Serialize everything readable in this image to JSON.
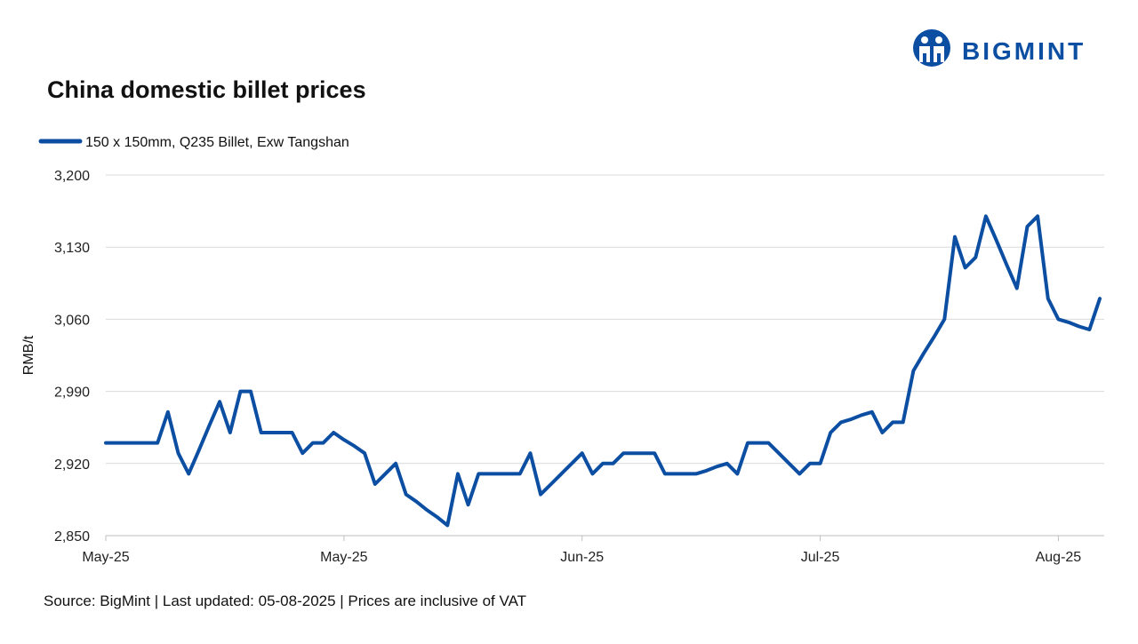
{
  "brand": "BIGMINT",
  "chart_data": {
    "type": "line",
    "title": "China domestic billet prices",
    "y_label": "RMB/t",
    "footer": "Source: BigMint | Last updated: 05-08-2025 | Prices are inclusive of VAT",
    "categories": [
      "May-25",
      null,
      null,
      null,
      null,
      null,
      null,
      null,
      null,
      null,
      null,
      null,
      null,
      null,
      null,
      null,
      null,
      null,
      null,
      null,
      null,
      null,
      null,
      "May-25",
      null,
      null,
      null,
      null,
      null,
      null,
      null,
      null,
      null,
      null,
      null,
      null,
      null,
      null,
      null,
      null,
      null,
      null,
      null,
      null,
      null,
      null,
      "Jun-25",
      null,
      null,
      null,
      null,
      null,
      null,
      null,
      null,
      null,
      null,
      null,
      null,
      null,
      null,
      null,
      null,
      null,
      null,
      null,
      null,
      null,
      null,
      "Jul-25",
      null,
      null,
      null,
      null,
      null,
      null,
      null,
      null,
      null,
      null,
      null,
      null,
      null,
      null,
      null,
      null,
      null,
      null,
      null,
      null,
      null,
      null,
      "Aug-25",
      null,
      null,
      null,
      null
    ],
    "series": [
      {
        "name": "150 x 150mm, Q235 Billet, Exw Tangshan",
        "color": "#0b4ea2",
        "values": [
          2940,
          2940,
          2940,
          2940,
          2940,
          2940,
          2970,
          2930,
          2910,
          2933,
          2957,
          2980,
          2950,
          2990,
          2990,
          2950,
          2950,
          2950,
          2950,
          2930,
          2940,
          2940,
          2950,
          2943,
          2937,
          2930,
          2900,
          2910,
          2920,
          2890,
          2883,
          2875,
          2868,
          2860,
          2910,
          2880,
          2910,
          2910,
          2910,
          2910,
          2910,
          2930,
          2890,
          2900,
          2910,
          2920,
          2930,
          2910,
          2920,
          2920,
          2930,
          2930,
          2930,
          2930,
          2910,
          2910,
          2910,
          2910,
          2913,
          2917,
          2920,
          2910,
          2940,
          2940,
          2940,
          2930,
          2920,
          2910,
          2920,
          2920,
          2950,
          2960,
          2963,
          2967,
          2970,
          2950,
          2960,
          2960,
          3010,
          3027,
          3043,
          3060,
          3140,
          3110,
          3120,
          3160,
          3137,
          3113,
          3090,
          3150,
          3160,
          3080,
          3060,
          3057,
          3053,
          3050,
          3080
        ]
      }
    ],
    "ylim": [
      2850,
      3200
    ],
    "yticks": [
      {
        "value": 2850,
        "label": "2,850"
      },
      {
        "value": 2920,
        "label": "2,920"
      },
      {
        "value": 2990,
        "label": "2,990"
      },
      {
        "value": 3060,
        "label": "3,060"
      },
      {
        "value": 3130,
        "label": "3,130"
      },
      {
        "value": 3200,
        "label": "3,200"
      }
    ],
    "grid": true,
    "legend": "top-left"
  }
}
